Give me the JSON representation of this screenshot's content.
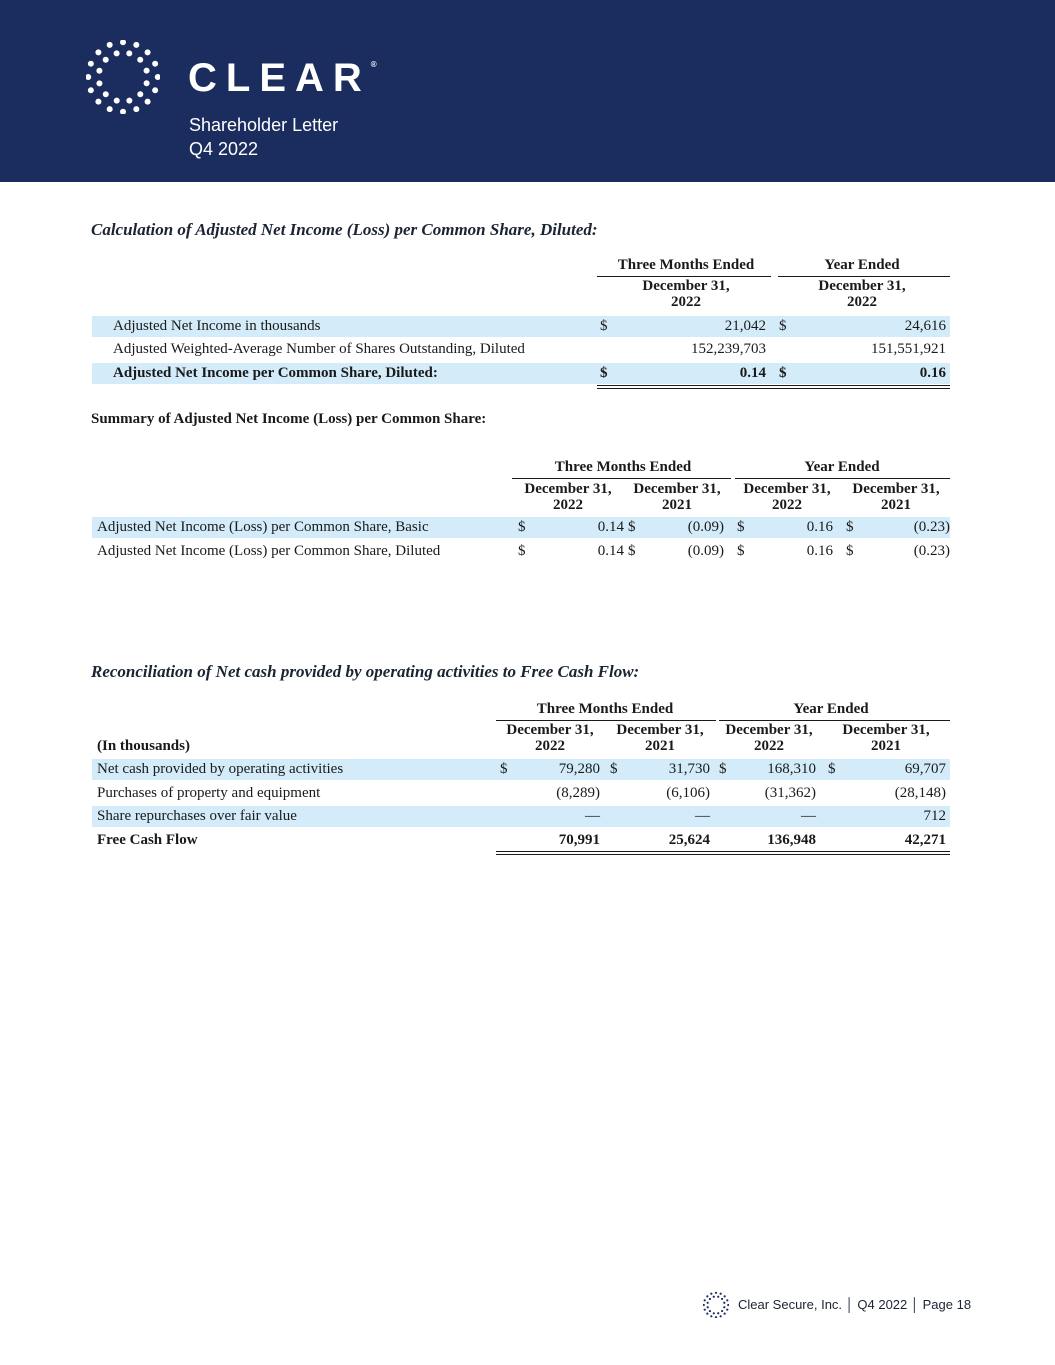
{
  "header": {
    "brand": "CLEAR",
    "registered": "®",
    "subtitle1": "Shareholder Letter",
    "subtitle2": "Q4 2022",
    "bg": "#1b2d5e"
  },
  "footer": {
    "text": "Clear Secure, Inc. │ Q4 2022 │  Page 18"
  },
  "table1": {
    "title": "Calculation of Adjusted Net Income (Loss) per Common Share, Diluted:",
    "groups": [
      "Three Months Ended",
      "Year Ended"
    ],
    "columns": [
      "December 31,\n2022",
      "December 31,\n2022"
    ],
    "rows": [
      {
        "label": "Adjusted Net Income in thousands",
        "cells": [
          [
            "$",
            "21,042"
          ],
          [
            "$",
            "24,616"
          ]
        ],
        "shaded": true,
        "bold": false
      },
      {
        "label": "Adjusted Weighted-Average Number of Shares Outstanding, Diluted",
        "cells": [
          [
            "",
            "152,239,703"
          ],
          [
            "",
            "151,551,921"
          ]
        ],
        "shaded": false,
        "bold": false
      },
      {
        "label": "Adjusted Net Income per Common Share, Diluted:",
        "cells": [
          [
            "$",
            "0.14"
          ],
          [
            "$",
            "0.16"
          ]
        ],
        "shaded": true,
        "bold": true
      }
    ]
  },
  "table2": {
    "title": "Summary of Adjusted Net Income (Loss) per Common Share:",
    "groups": [
      "Three Months Ended",
      "Year Ended"
    ],
    "columns": [
      "December 31,\n2022",
      "December 31,\n2021",
      "December 31,\n2022",
      "December 31,\n2021"
    ],
    "rows": [
      {
        "label": "Adjusted Net Income (Loss) per Common Share, Basic",
        "cells": [
          [
            "$",
            "0.14"
          ],
          [
            "$",
            "(0.09)"
          ],
          [
            "$",
            "0.16"
          ],
          [
            "$",
            "(0.23)"
          ]
        ],
        "shaded": true,
        "bold": false
      },
      {
        "label": "Adjusted Net Income (Loss) per Common Share, Diluted",
        "cells": [
          [
            "$",
            "0.14"
          ],
          [
            "$",
            "(0.09)"
          ],
          [
            "$",
            "0.16"
          ],
          [
            "$",
            "(0.23)"
          ]
        ],
        "shaded": false,
        "bold": false
      }
    ]
  },
  "table3": {
    "title": "Reconciliation of Net cash provided by operating activities to Free Cash Flow:",
    "unit_label": "(In thousands)",
    "groups": [
      "Three Months Ended",
      "Year Ended"
    ],
    "columns": [
      "December 31,\n2022",
      "December 31,\n2021",
      "December 31,\n2022",
      "December 31,\n2021"
    ],
    "rows": [
      {
        "label": "Net cash provided by operating activities",
        "cells": [
          [
            "$",
            "79,280"
          ],
          [
            "$",
            "31,730"
          ],
          [
            "$",
            "168,310"
          ],
          [
            "$",
            "69,707"
          ]
        ],
        "shaded": true,
        "bold": false
      },
      {
        "label": "Purchases of property and equipment",
        "cells": [
          [
            "",
            "(8,289)"
          ],
          [
            "",
            "(6,106)"
          ],
          [
            "",
            "(31,362)"
          ],
          [
            "",
            "(28,148)"
          ]
        ],
        "shaded": false,
        "bold": false
      },
      {
        "label": "Share repurchases over fair value",
        "cells": [
          [
            "",
            "—"
          ],
          [
            "",
            "—"
          ],
          [
            "",
            "—"
          ],
          [
            "",
            "712"
          ]
        ],
        "shaded": true,
        "bold": false
      },
      {
        "label": "Free Cash Flow",
        "cells": [
          [
            "",
            "70,991"
          ],
          [
            "",
            "25,624"
          ],
          [
            "",
            "136,948"
          ],
          [
            "",
            "42,271"
          ]
        ],
        "shaded": false,
        "bold": true
      }
    ]
  }
}
